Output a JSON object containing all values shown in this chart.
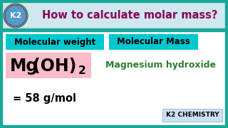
{
  "bg_color": "#ffffff",
  "border_color": "#17a899",
  "title_bg": "#cfe8f0",
  "title_text": "How to calculate molar mass?",
  "title_color": "#8b0057",
  "k2_text": "K2",
  "box1_text": "Molecular weight",
  "box2_text": "Molecular Mass",
  "box_bg": "#00c8d0",
  "box_text_color": "#000000",
  "formula_bg": "#f9bcc8",
  "formula_mg": "Mg",
  "formula_oh": "(OH)",
  "formula_sub": "2",
  "compound_name": "Magnesium hydroxide",
  "compound_color": "#2e7d32",
  "result_text": "= 58 g/mol",
  "result_color": "#000000",
  "k2chem_text": "K2 CHEMISTRY",
  "k2chem_bg": "#cce0f5",
  "k2chem_color": "#000000",
  "border_width": 5
}
